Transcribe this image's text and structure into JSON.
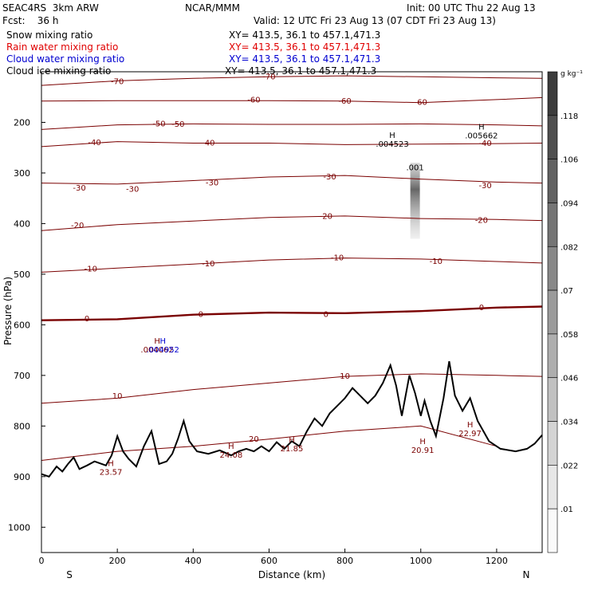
{
  "header": {
    "left1": "SEAC4RS  3km ARW",
    "center1": "NCAR/MMM",
    "init": "Init: 00 UTC Thu 22 Aug 13",
    "fcst": "Fcst:    36 h",
    "valid": "Valid: 12 UTC Fri 23 Aug 13 (07 CDT Fri 23 Aug 13)",
    "fields": [
      {
        "name": "Snow mixing ratio",
        "xy": "XY= 413.5, 36.1 to 457.1,471.3",
        "color": "#000000"
      },
      {
        "name": "Rain water mixing ratio",
        "xy": "XY= 413.5, 36.1 to 457.1,471.3",
        "color": "#e00000"
      },
      {
        "name": "Cloud water mixing ratio",
        "xy": "XY= 413.5, 36.1 to 457.1,471.3",
        "color": "#0000d0"
      },
      {
        "name": "Cloud ice mixing ratio",
        "xy": "XY= 413.5, 36.1 to 457.1,471.3",
        "color": "#000000"
      }
    ]
  },
  "chart_data": {
    "type": "cross-section",
    "xlabel": "Distance (km)",
    "ylabel": "Pressure (hPa)",
    "xlim": [
      0,
      1320
    ],
    "ylim": [
      100,
      1050
    ],
    "x_ticks": [
      0,
      200,
      400,
      600,
      800,
      1000,
      1200
    ],
    "y_ticks": [
      200,
      300,
      400,
      500,
      600,
      700,
      800,
      900,
      1000
    ],
    "x_end_labels": {
      "left": "S",
      "right": "N"
    },
    "colorbar": {
      "unit": "g kg⁻¹",
      "labels": [
        ".118",
        ".106",
        ".094",
        ".082",
        ".07",
        ".058",
        ".046",
        ".034",
        ".022",
        ".01"
      ]
    },
    "temperature_contours": [
      {
        "label": "-70",
        "level": -70,
        "label_positions": [
          [
            200,
            120
          ],
          [
            600,
            110
          ]
        ],
        "points": [
          [
            0,
            127
          ],
          [
            200,
            118
          ],
          [
            400,
            113
          ],
          [
            600,
            110
          ],
          [
            800,
            108
          ],
          [
            1000,
            110
          ],
          [
            1200,
            112
          ],
          [
            1320,
            113
          ]
        ]
      },
      {
        "label": "-60",
        "level": -60,
        "label_positions": [
          [
            560,
            156
          ],
          [
            800,
            158
          ],
          [
            1000,
            161
          ]
        ],
        "points": [
          [
            0,
            158
          ],
          [
            200,
            157
          ],
          [
            400,
            157
          ],
          [
            600,
            157
          ],
          [
            800,
            158
          ],
          [
            1000,
            161
          ],
          [
            1200,
            155
          ],
          [
            1320,
            151
          ]
        ]
      },
      {
        "label": "-50",
        "level": -50,
        "label_positions": [
          [
            310,
            203
          ],
          [
            360,
            204
          ]
        ],
        "points": [
          [
            0,
            214
          ],
          [
            200,
            205
          ],
          [
            400,
            203
          ],
          [
            600,
            204
          ],
          [
            800,
            204
          ],
          [
            1000,
            203
          ],
          [
            1200,
            205
          ],
          [
            1320,
            207
          ]
        ]
      },
      {
        "label": "-40",
        "level": -40,
        "label_positions": [
          [
            140,
            240
          ],
          [
            440,
            241
          ],
          [
            1170,
            242
          ]
        ],
        "points": [
          [
            0,
            248
          ],
          [
            200,
            238
          ],
          [
            400,
            241
          ],
          [
            600,
            241
          ],
          [
            800,
            244
          ],
          [
            1000,
            243
          ],
          [
            1200,
            242
          ],
          [
            1320,
            241
          ]
        ]
      },
      {
        "label": "-30",
        "level": -30,
        "label_positions": [
          [
            100,
            330
          ],
          [
            240,
            332
          ],
          [
            450,
            320
          ],
          [
            760,
            308
          ],
          [
            1170,
            325
          ]
        ],
        "points": [
          [
            0,
            320
          ],
          [
            200,
            322
          ],
          [
            400,
            315
          ],
          [
            600,
            308
          ],
          [
            800,
            305
          ],
          [
            1000,
            312
          ],
          [
            1200,
            318
          ],
          [
            1320,
            320
          ]
        ]
      },
      {
        "label": "-20",
        "level": -20,
        "label_positions": [
          [
            95,
            404
          ],
          [
            750,
            386
          ],
          [
            1160,
            394
          ]
        ],
        "points": [
          [
            0,
            414
          ],
          [
            200,
            402
          ],
          [
            400,
            395
          ],
          [
            600,
            388
          ],
          [
            800,
            385
          ],
          [
            1000,
            390
          ],
          [
            1200,
            392
          ],
          [
            1320,
            394
          ]
        ]
      },
      {
        "label": "-10",
        "level": -10,
        "label_positions": [
          [
            130,
            490
          ],
          [
            440,
            480
          ],
          [
            780,
            468
          ],
          [
            1040,
            475
          ]
        ],
        "points": [
          [
            0,
            496
          ],
          [
            200,
            488
          ],
          [
            400,
            480
          ],
          [
            600,
            472
          ],
          [
            800,
            468
          ],
          [
            1000,
            470
          ],
          [
            1200,
            475
          ],
          [
            1320,
            478
          ]
        ]
      },
      {
        "label": "0",
        "level": 0,
        "label_positions": [
          [
            120,
            588
          ],
          [
            420,
            580
          ],
          [
            750,
            580
          ],
          [
            1160,
            566
          ]
        ],
        "points": [
          [
            0,
            591
          ],
          [
            200,
            589
          ],
          [
            400,
            580
          ],
          [
            600,
            576
          ],
          [
            800,
            577
          ],
          [
            1000,
            573
          ],
          [
            1200,
            566
          ],
          [
            1320,
            564
          ]
        ]
      },
      {
        "label": "10",
        "level": 10,
        "label_positions": [
          [
            200,
            741
          ],
          [
            800,
            702
          ]
        ],
        "points": [
          [
            0,
            755
          ],
          [
            200,
            745
          ],
          [
            400,
            728
          ],
          [
            600,
            715
          ],
          [
            800,
            702
          ],
          [
            1000,
            697
          ],
          [
            1200,
            700
          ],
          [
            1320,
            702
          ]
        ]
      },
      {
        "label": "20",
        "level": 20,
        "label_positions": [
          [
            560,
            826
          ]
        ],
        "points": [
          [
            0,
            868
          ],
          [
            200,
            850
          ],
          [
            400,
            840
          ],
          [
            600,
            826
          ],
          [
            800,
            810
          ],
          [
            1000,
            800
          ],
          [
            1200,
            840
          ]
        ]
      }
    ],
    "maxima_labels": [
      {
        "marker": "H",
        "value": ".004523",
        "x": 925,
        "p": 243,
        "color": "#000000"
      },
      {
        "marker": "H",
        "value": ".005662",
        "x": 1160,
        "p": 227,
        "color": "#000000"
      },
      {
        "marker": "",
        "value": ".001",
        "x": 985,
        "p": 290,
        "color": "#000000"
      },
      {
        "marker": "H",
        "value": "23.57",
        "x": 183,
        "p": 892,
        "color": "#7a0000"
      },
      {
        "marker": "H",
        "value": "24.08",
        "x": 500,
        "p": 858,
        "color": "#7a0000"
      },
      {
        "marker": "H",
        "value": "21.85",
        "x": 660,
        "p": 845,
        "color": "#7a0000"
      },
      {
        "marker": "H",
        "value": "20.91",
        "x": 1005,
        "p": 848,
        "color": "#7a0000"
      },
      {
        "marker": "H",
        "value": "22.97",
        "x": 1130,
        "p": 815,
        "color": "#7a0000"
      },
      {
        "marker": "H",
        "value": ".004062",
        "x": 305,
        "p": 650,
        "color": "#7a0000"
      },
      {
        "marker": "H",
        "value": ".004952",
        "x": 320,
        "p": 650,
        "color": "#0000d0"
      }
    ],
    "terrain_surface_pressure": [
      [
        0,
        895
      ],
      [
        20,
        900
      ],
      [
        40,
        880
      ],
      [
        55,
        890
      ],
      [
        70,
        875
      ],
      [
        85,
        862
      ],
      [
        100,
        885
      ],
      [
        120,
        878
      ],
      [
        140,
        870
      ],
      [
        170,
        878
      ],
      [
        185,
        858
      ],
      [
        200,
        820
      ],
      [
        215,
        850
      ],
      [
        230,
        865
      ],
      [
        250,
        880
      ],
      [
        270,
        840
      ],
      [
        290,
        810
      ],
      [
        310,
        875
      ],
      [
        330,
        870
      ],
      [
        345,
        855
      ],
      [
        360,
        825
      ],
      [
        375,
        790
      ],
      [
        390,
        830
      ],
      [
        410,
        850
      ],
      [
        440,
        855
      ],
      [
        470,
        848
      ],
      [
        500,
        858
      ],
      [
        520,
        850
      ],
      [
        540,
        845
      ],
      [
        560,
        850
      ],
      [
        580,
        840
      ],
      [
        600,
        850
      ],
      [
        620,
        832
      ],
      [
        640,
        845
      ],
      [
        660,
        830
      ],
      [
        680,
        840
      ],
      [
        700,
        810
      ],
      [
        720,
        785
      ],
      [
        740,
        800
      ],
      [
        760,
        775
      ],
      [
        780,
        760
      ],
      [
        800,
        745
      ],
      [
        820,
        725
      ],
      [
        840,
        740
      ],
      [
        860,
        755
      ],
      [
        880,
        740
      ],
      [
        900,
        715
      ],
      [
        920,
        680
      ],
      [
        935,
        720
      ],
      [
        950,
        780
      ],
      [
        970,
        700
      ],
      [
        985,
        735
      ],
      [
        1000,
        780
      ],
      [
        1010,
        750
      ],
      [
        1025,
        790
      ],
      [
        1040,
        820
      ],
      [
        1060,
        745
      ],
      [
        1075,
        672
      ],
      [
        1090,
        740
      ],
      [
        1110,
        770
      ],
      [
        1130,
        745
      ],
      [
        1150,
        790
      ],
      [
        1180,
        830
      ],
      [
        1210,
        845
      ],
      [
        1250,
        850
      ],
      [
        1280,
        845
      ],
      [
        1300,
        835
      ],
      [
        1320,
        818
      ]
    ],
    "snow_shading": {
      "x": 985,
      "p_top": 280,
      "p_bottom": 430,
      "value_max": 0.118
    }
  }
}
